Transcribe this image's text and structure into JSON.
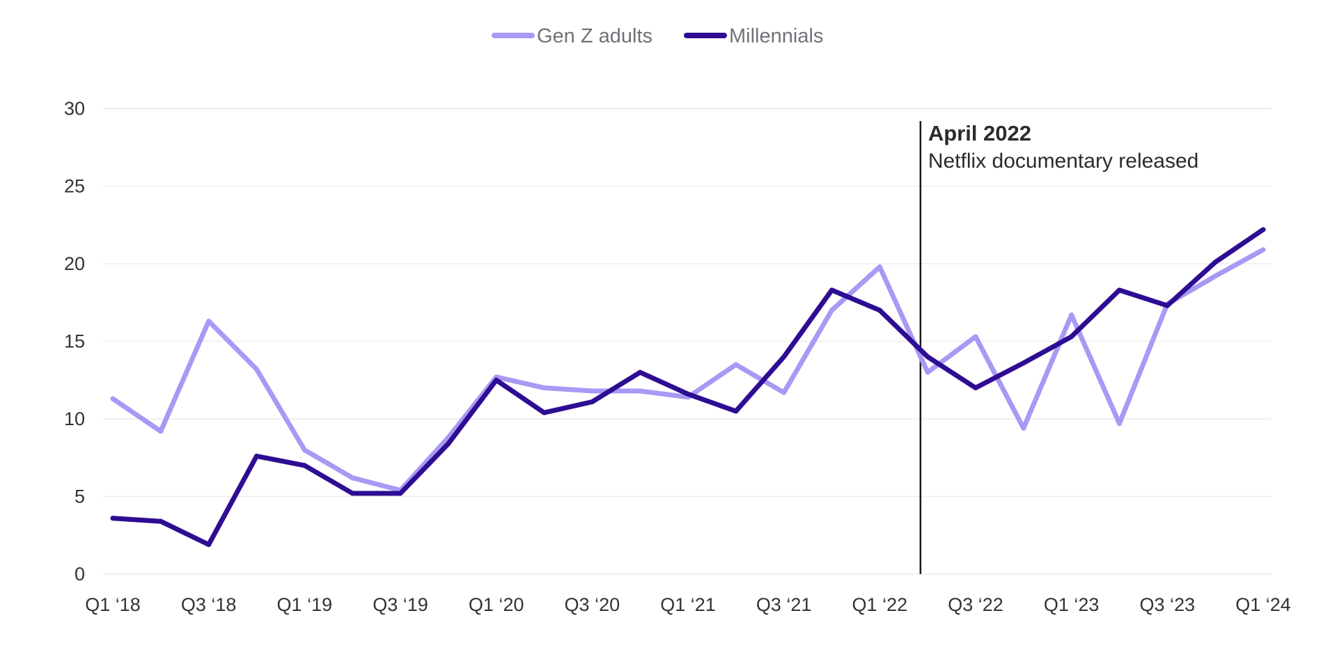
{
  "chart_data": {
    "type": "line",
    "title": "",
    "xlabel": "",
    "ylabel": "",
    "ylim": [
      0,
      30
    ],
    "yticks": [
      "0",
      "5",
      "10",
      "15",
      "20",
      "25",
      "30"
    ],
    "grid": true,
    "legend_position": "top-center",
    "categories": [
      "Q1 ‘18",
      "Q2 ‘18",
      "Q3 ‘18",
      "Q4 ‘18",
      "Q1 ‘19",
      "Q2 ‘19",
      "Q3 ‘19",
      "Q4 ‘19",
      "Q1 ‘20",
      "Q2 ‘20",
      "Q3 ‘20",
      "Q4 ‘20",
      "Q1 ‘21",
      "Q2 ‘21",
      "Q3 ‘21",
      "Q4 ‘21",
      "Q1 ‘22",
      "Q2 ‘22",
      "Q3 ‘22",
      "Q4 ‘22",
      "Q1 ‘23",
      "Q2 ‘23",
      "Q3 ‘23",
      "Q4 ‘23",
      "Q1 ‘24"
    ],
    "xtick_labels": [
      "Q1 ‘18",
      "Q3 ‘18",
      "Q1 ‘19",
      "Q3 ‘19",
      "Q1 ‘20",
      "Q3 ‘20",
      "Q1 ‘21",
      "Q3 ‘21",
      "Q1 ‘22",
      "Q3 ‘22",
      "Q1 ‘23",
      "Q3 ‘23",
      "Q1 ‘24"
    ],
    "series": [
      {
        "name": "Gen Z adults",
        "color": "#a899f5",
        "values": [
          11.3,
          9.2,
          16.3,
          13.2,
          8.0,
          6.2,
          5.4,
          8.8,
          12.7,
          12.0,
          11.8,
          11.8,
          11.4,
          13.5,
          11.7,
          17.0,
          19.8,
          13.0,
          15.3,
          9.4,
          16.7,
          9.7,
          17.4,
          19.2,
          20.9
        ]
      },
      {
        "name": "Millennials",
        "color": "#2e0d93",
        "values": [
          3.6,
          3.4,
          1.9,
          7.6,
          7.0,
          5.2,
          5.2,
          8.4,
          12.5,
          10.4,
          11.1,
          13.0,
          11.6,
          10.5,
          14.0,
          18.3,
          17.0,
          14.0,
          12.0,
          13.6,
          15.3,
          18.3,
          17.3,
          20.1,
          22.2
        ]
      }
    ],
    "annotation": {
      "x_position": 16.85,
      "title": "April 2022",
      "text": "Netflix documentary released",
      "line_color": "#1a1a1a"
    }
  }
}
